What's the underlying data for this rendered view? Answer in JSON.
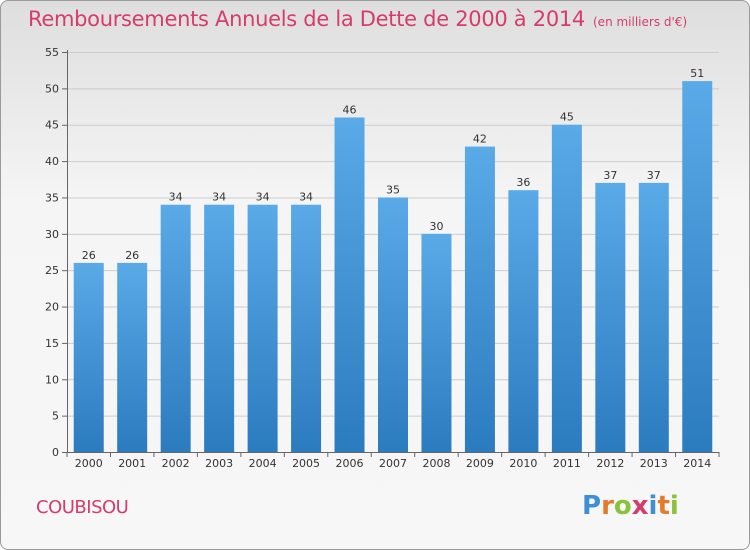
{
  "title": "Remboursements Annuels de la Dette de 2000 à 2014",
  "subtitle": "(en milliers d'€)",
  "commune": "COUBISOU",
  "logo": {
    "letters": [
      "P",
      "r",
      "o",
      "x",
      "i",
      "t",
      "i"
    ],
    "colors": [
      "#3f8fd6",
      "#e47b2c",
      "#8ac23a",
      "#d63c6b",
      "#3f8fd6",
      "#e47b2c",
      "#8ac23a"
    ]
  },
  "colors": {
    "bar_top": "#5aaae8",
    "bar_bottom": "#2b7bbf",
    "grid": "#cccccc",
    "title": "#d63c6b"
  },
  "chart_data": {
    "type": "bar",
    "categories": [
      "2000",
      "2001",
      "2002",
      "2003",
      "2004",
      "2005",
      "2006",
      "2007",
      "2008",
      "2009",
      "2010",
      "2011",
      "2012",
      "2013",
      "2014"
    ],
    "values": [
      26,
      26,
      34,
      34,
      34,
      34,
      46,
      35,
      30,
      42,
      36,
      45,
      37,
      37,
      51
    ],
    "ylim": [
      0,
      55
    ],
    "yticks": [
      0,
      5,
      10,
      15,
      20,
      25,
      30,
      35,
      40,
      45,
      50,
      55
    ],
    "grid": true,
    "data_labels": true
  }
}
